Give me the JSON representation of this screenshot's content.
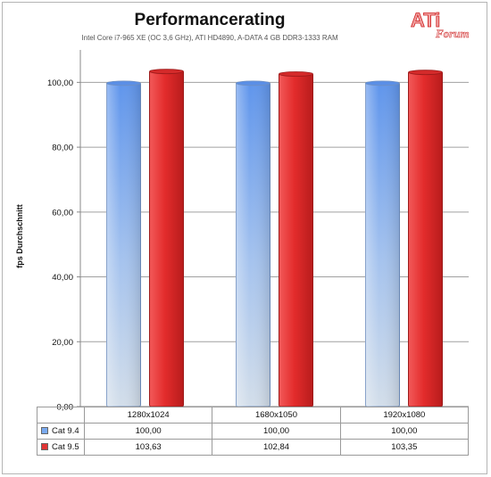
{
  "chart_data": {
    "type": "bar",
    "title": "Performancerating",
    "subtitle": "Intel Core i7-965 XE (OC 3,6 GHz), ATI HD4890, A-DATA 4 GB DDR3-1333 RAM",
    "xlabel": "",
    "ylabel": "fps Durchschnitt",
    "ylim": [
      0,
      110
    ],
    "yticks": [
      "0,00",
      "20,00",
      "40,00",
      "60,00",
      "80,00",
      "100,00"
    ],
    "categories": [
      "1280x1024",
      "1680x1050",
      "1920x1080"
    ],
    "series": [
      {
        "name": "Cat 9.4",
        "values": [
          100.0,
          100.0,
          100.0
        ],
        "labels": [
          "100,00",
          "100,00",
          "100,00"
        ],
        "color": "#7aaaf0"
      },
      {
        "name": "Cat 9.5",
        "values": [
          103.63,
          102.84,
          103.35
        ],
        "labels": [
          "103,63",
          "102,84",
          "103,35"
        ],
        "color": "#e03434"
      }
    ],
    "grid": true,
    "legend": "data-table"
  },
  "logo": {
    "main": "ATi",
    "sub": "Forum"
  },
  "colors": {
    "grid": "#a0a0a0",
    "axis": "#888888",
    "blue_top": "#6a9ef0",
    "blue_bottom": "#c8d8ec",
    "red": "#e03434"
  }
}
